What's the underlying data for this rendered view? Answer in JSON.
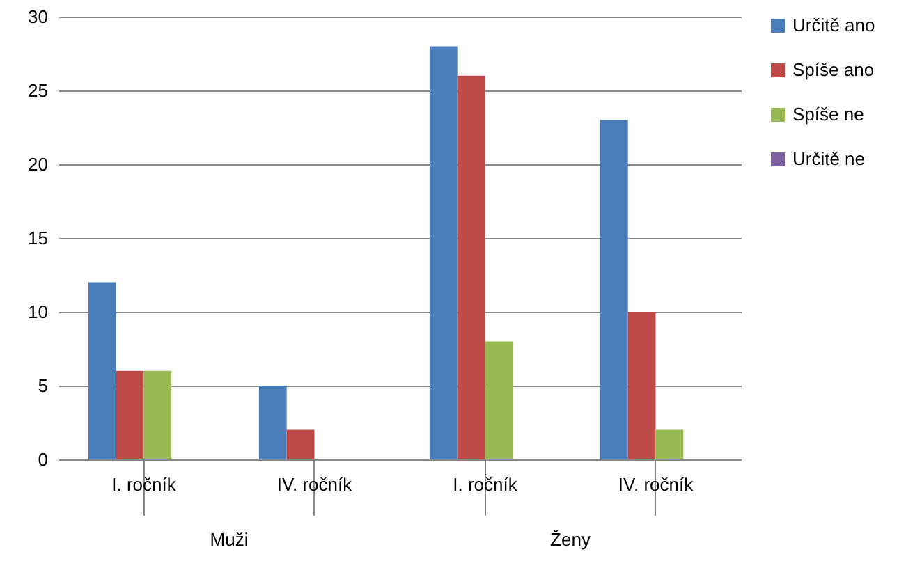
{
  "chart_data": {
    "type": "bar",
    "categories": [
      "I. ročník",
      "IV. ročník",
      "I. ročník",
      "IV. ročník"
    ],
    "series": [
      {
        "name": "Určitě ano",
        "color": "#4a7ebb",
        "values": [
          12,
          5,
          28,
          23
        ]
      },
      {
        "name": "Spíše ano",
        "color": "#be4b48",
        "values": [
          6,
          2,
          26,
          10
        ]
      },
      {
        "name": "Spíše ne",
        "color": "#98b954",
        "values": [
          6,
          0,
          8,
          2
        ]
      },
      {
        "name": "Určitě ne",
        "color": "#7d60a0",
        "values": [
          0,
          0,
          0,
          0
        ]
      }
    ],
    "annotations": [
      "Muži",
      "Ženy"
    ],
    "ylim": [
      0,
      30
    ],
    "yticks": [
      0,
      5,
      10,
      15,
      20,
      25,
      30
    ],
    "grid": "y",
    "legend": "right"
  }
}
